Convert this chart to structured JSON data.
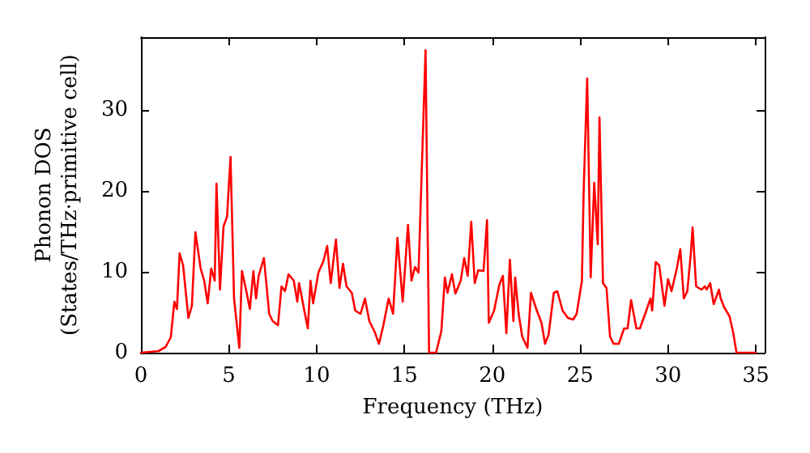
{
  "chart_data": {
    "type": "line",
    "xlabel": "Frequency (THz)",
    "ylabel": "Phonon DOS\n(States/THz·primitive cell)",
    "xlim": [
      0,
      35.5
    ],
    "ylim": [
      0,
      39
    ],
    "xticks": [
      0,
      5,
      10,
      15,
      20,
      25,
      30,
      35
    ],
    "yticks": [
      0,
      10,
      20,
      30
    ],
    "grid": false,
    "marker": "none",
    "line_style": "solid",
    "series": [
      {
        "color": "#ff0000",
        "x": [
          0,
          1,
          1.4,
          1.7,
          1.9,
          2.05,
          2.2,
          2.4,
          2.7,
          2.9,
          3.1,
          3.4,
          3.6,
          3.8,
          4.0,
          4.2,
          4.3,
          4.5,
          4.7,
          4.9,
          5.1,
          5.3,
          5.6,
          5.75,
          6.0,
          6.2,
          6.4,
          6.55,
          6.7,
          7.0,
          7.3,
          7.5,
          7.8,
          8.0,
          8.2,
          8.4,
          8.7,
          8.9,
          9.0,
          9.3,
          9.5,
          9.65,
          9.8,
          10.1,
          10.4,
          10.6,
          10.8,
          11.1,
          11.3,
          11.5,
          11.7,
          12.0,
          12.2,
          12.5,
          12.75,
          13.0,
          13.3,
          13.55,
          13.8,
          14.1,
          14.35,
          14.6,
          14.9,
          15.2,
          15.4,
          15.6,
          15.8,
          16.2,
          16.4,
          16.8,
          17.1,
          17.3,
          17.45,
          17.7,
          17.9,
          18.2,
          18.4,
          18.6,
          18.8,
          19.0,
          19.2,
          19.5,
          19.7,
          19.8,
          20.1,
          20.4,
          20.6,
          20.8,
          21.0,
          21.2,
          21.3,
          21.5,
          21.7,
          22.0,
          22.2,
          22.5,
          22.8,
          23.0,
          23.2,
          23.5,
          23.7,
          24.0,
          24.3,
          24.6,
          24.8,
          25.1,
          25.2,
          25.4,
          25.6,
          25.8,
          26.0,
          26.1,
          26.3,
          26.5,
          26.7,
          26.9,
          27.2,
          27.5,
          27.7,
          27.9,
          28.2,
          28.4,
          28.7,
          29.0,
          29.1,
          29.3,
          29.5,
          29.8,
          30.0,
          30.2,
          30.5,
          30.7,
          30.9,
          31.1,
          31.3,
          31.4,
          31.6,
          31.9,
          32.1,
          32.2,
          32.4,
          32.6,
          32.9,
          33.0,
          33.2,
          33.5,
          33.7,
          33.9,
          34.1,
          35
        ],
        "values": [
          0,
          0.2,
          0.7,
          1.9,
          6.3,
          5.4,
          12.3,
          10.8,
          4.3,
          5.8,
          14.9,
          10.4,
          8.9,
          6.1,
          10.4,
          8.9,
          20.9,
          7.8,
          15.6,
          16.8,
          24.2,
          6.7,
          0.6,
          10.1,
          7.6,
          5.4,
          10.1,
          6.7,
          9.5,
          11.7,
          4.8,
          3.9,
          3.4,
          8.2,
          7.6,
          9.7,
          8.9,
          6.3,
          8.6,
          5.2,
          3.0,
          8.9,
          6.1,
          9.9,
          11.4,
          13.2,
          8.6,
          14.0,
          8.0,
          11.0,
          8.2,
          7.4,
          5.2,
          4.8,
          6.7,
          3.9,
          2.6,
          1.1,
          3.4,
          6.7,
          4.8,
          14.2,
          6.3,
          15.8,
          8.9,
          10.6,
          9.9,
          37.4,
          0,
          0,
          2.7,
          9.3,
          7.4,
          9.7,
          7.3,
          8.9,
          11.7,
          9.5,
          16.2,
          8.6,
          10.2,
          10.1,
          16.4,
          3.7,
          5.2,
          8.4,
          9.5,
          2.4,
          11.5,
          3.9,
          9.3,
          4.8,
          2.0,
          0.6,
          7.4,
          5.4,
          3.7,
          1.1,
          2.2,
          7.4,
          7.6,
          5.2,
          4.3,
          4.1,
          4.8,
          8.9,
          20.1,
          33.9,
          9.3,
          21.0,
          13.4,
          29.1,
          8.6,
          8.0,
          2.0,
          1.1,
          1.1,
          3.0,
          3.0,
          6.5,
          3.0,
          3.0,
          4.8,
          6.7,
          5.2,
          11.2,
          10.8,
          5.8,
          9.1,
          7.6,
          10.4,
          12.8,
          6.7,
          7.6,
          12.3,
          15.5,
          8.2,
          7.8,
          8.2,
          7.8,
          8.6,
          6.0,
          7.8,
          6.7,
          5.6,
          4.5,
          2.6,
          0,
          0,
          0
        ]
      }
    ]
  }
}
